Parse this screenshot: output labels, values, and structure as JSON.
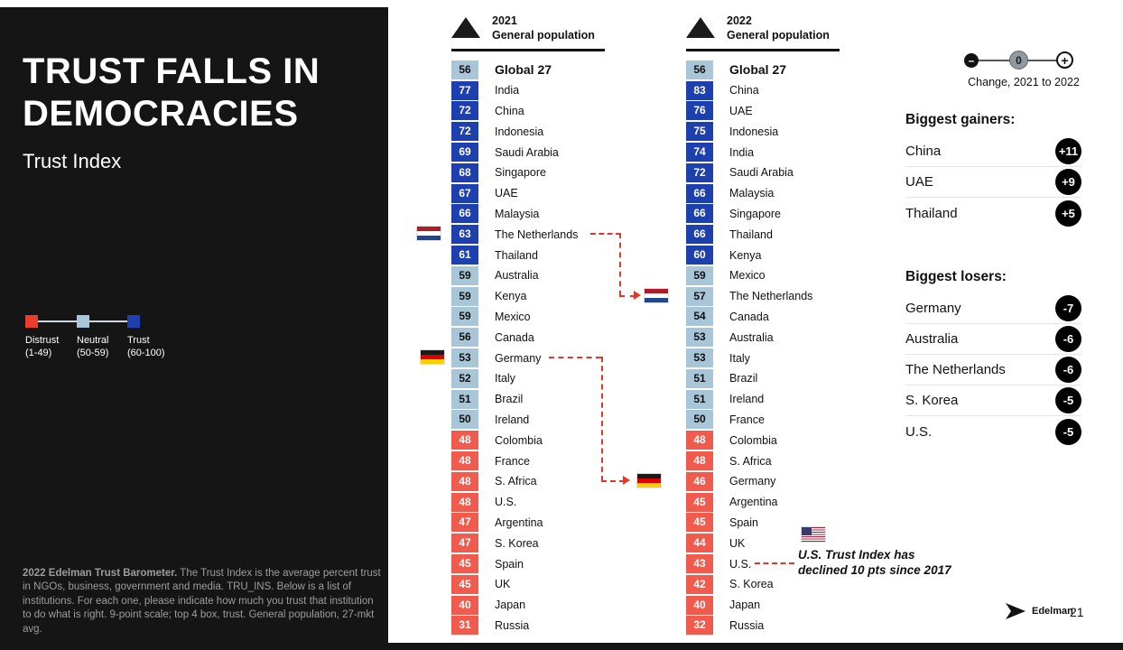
{
  "left_panel": {
    "title": "TRUST FALLS IN DEMOCRACIES",
    "subtitle": "Trust Index",
    "legend": {
      "items": [
        {
          "label": "Distrust",
          "range": "(1-49)"
        },
        {
          "label": "Neutral",
          "range": "(50-59)"
        },
        {
          "label": "Trust",
          "range": "(60-100)"
        }
      ]
    },
    "footnote": {
      "bold": "2022 Edelman Trust Barometer.",
      "text": " The Trust Index is the average percent trust in NGOs, business, government and media. TRU_INS. Below is a list of institutions. For each one, please indicate how much you trust that institution to do what is right. 9-point scale; top 4 box, trust. General population, 27-mkt avg."
    }
  },
  "chart_data": {
    "type": "table",
    "title": "Trust Index",
    "bands": {
      "distrust": "1-49",
      "neutral": "50-59",
      "trust": "60-100"
    },
    "columns": [
      {
        "year": "2021",
        "subtitle": "General population",
        "rows": [
          {
            "value": 56,
            "label": "Global 27",
            "global": true
          },
          {
            "value": 77,
            "label": "India"
          },
          {
            "value": 72,
            "label": "China"
          },
          {
            "value": 72,
            "label": "Indonesia"
          },
          {
            "value": 69,
            "label": "Saudi Arabia"
          },
          {
            "value": 68,
            "label": "Singapore"
          },
          {
            "value": 67,
            "label": "UAE"
          },
          {
            "value": 66,
            "label": "Malaysia"
          },
          {
            "value": 63,
            "label": "The Netherlands",
            "flag": "nl"
          },
          {
            "value": 61,
            "label": "Thailand"
          },
          {
            "value": 59,
            "label": "Australia"
          },
          {
            "value": 59,
            "label": "Kenya"
          },
          {
            "value": 59,
            "label": "Mexico"
          },
          {
            "value": 56,
            "label": "Canada"
          },
          {
            "value": 53,
            "label": "Germany",
            "flag": "de"
          },
          {
            "value": 52,
            "label": "Italy"
          },
          {
            "value": 51,
            "label": "Brazil"
          },
          {
            "value": 50,
            "label": "Ireland"
          },
          {
            "value": 48,
            "label": "Colombia"
          },
          {
            "value": 48,
            "label": "France"
          },
          {
            "value": 48,
            "label": "S. Africa"
          },
          {
            "value": 48,
            "label": "U.S."
          },
          {
            "value": 47,
            "label": "Argentina"
          },
          {
            "value": 47,
            "label": "S. Korea"
          },
          {
            "value": 45,
            "label": "Spain"
          },
          {
            "value": 45,
            "label": "UK"
          },
          {
            "value": 40,
            "label": "Japan"
          },
          {
            "value": 31,
            "label": "Russia"
          }
        ]
      },
      {
        "year": "2022",
        "subtitle": "General population",
        "rows": [
          {
            "value": 56,
            "label": "Global 27",
            "global": true
          },
          {
            "value": 83,
            "label": "China"
          },
          {
            "value": 76,
            "label": "UAE"
          },
          {
            "value": 75,
            "label": "Indonesia"
          },
          {
            "value": 74,
            "label": "India"
          },
          {
            "value": 72,
            "label": "Saudi Arabia"
          },
          {
            "value": 66,
            "label": "Malaysia"
          },
          {
            "value": 66,
            "label": "Singapore"
          },
          {
            "value": 66,
            "label": "Thailand"
          },
          {
            "value": 60,
            "label": "Kenya"
          },
          {
            "value": 59,
            "label": "Mexico"
          },
          {
            "value": 57,
            "label": "The Netherlands",
            "flag": "nl"
          },
          {
            "value": 54,
            "label": "Canada"
          },
          {
            "value": 53,
            "label": "Australia"
          },
          {
            "value": 53,
            "label": "Italy"
          },
          {
            "value": 51,
            "label": "Brazil"
          },
          {
            "value": 51,
            "label": "Ireland"
          },
          {
            "value": 50,
            "label": "France"
          },
          {
            "value": 48,
            "label": "Colombia"
          },
          {
            "value": 48,
            "label": "S. Africa"
          },
          {
            "value": 46,
            "label": "Germany",
            "flag": "de"
          },
          {
            "value": 45,
            "label": "Argentina"
          },
          {
            "value": 45,
            "label": "Spain"
          },
          {
            "value": 44,
            "label": "UK"
          },
          {
            "value": 43,
            "label": "U.S.",
            "flag": "us"
          },
          {
            "value": 42,
            "label": "S. Korea"
          },
          {
            "value": 40,
            "label": "Japan"
          },
          {
            "value": 32,
            "label": "Russia"
          }
        ]
      }
    ],
    "annotations": [
      {
        "country": "The Netherlands",
        "from": 63,
        "to": 57
      },
      {
        "country": "Germany",
        "from": 53,
        "to": 46
      },
      {
        "country": "U.S.",
        "note": "U.S. Trust Index has declined 10 pts since 2017"
      }
    ]
  },
  "right_panel": {
    "change_scale": {
      "minus": "–",
      "zero": "0",
      "plus": "+",
      "label": "Change, 2021 to 2022"
    },
    "gainers": {
      "title": "Biggest gainers:",
      "items": [
        {
          "label": "China",
          "change": "+11"
        },
        {
          "label": "UAE",
          "change": "+9"
        },
        {
          "label": "Thailand",
          "change": "+5"
        }
      ]
    },
    "losers": {
      "title": "Biggest losers:",
      "items": [
        {
          "label": "Germany",
          "change": "-7"
        },
        {
          "label": "Australia",
          "change": "-6"
        },
        {
          "label": "The Netherlands",
          "change": "-6"
        },
        {
          "label": "S. Korea",
          "change": "-5"
        },
        {
          "label": "U.S.",
          "change": "-5"
        }
      ]
    },
    "us_note_line1": "U.S. Trust Index has",
    "us_note_line2": "declined 10 pts since 2017"
  },
  "footer": {
    "brand": "Edelman",
    "page": "21"
  },
  "colors": {
    "trust": "#1e3fae",
    "neutral": "#a9c6d8",
    "distrust": "#f15b4d",
    "distrust-strong": "#e93e2c",
    "arrow": "#e0392b"
  }
}
